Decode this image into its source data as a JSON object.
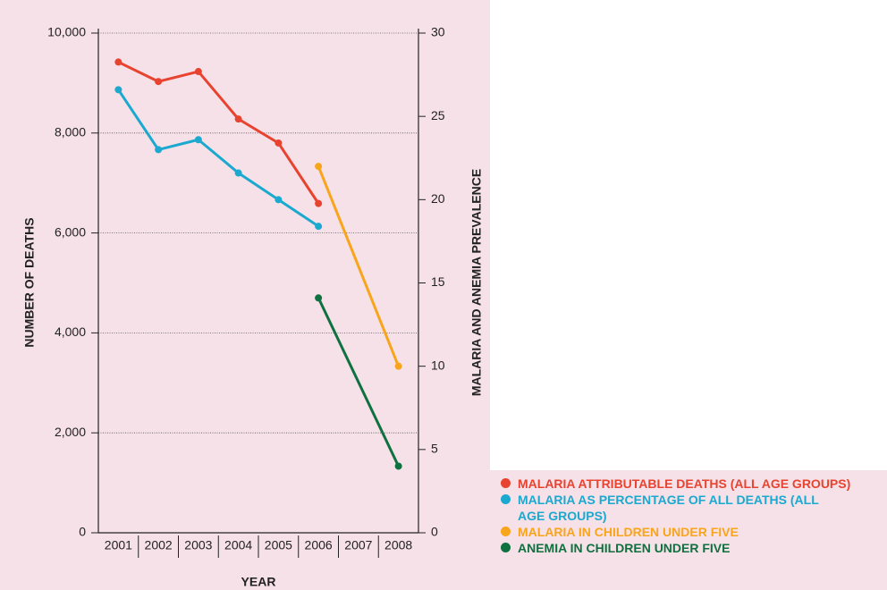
{
  "chart_data": {
    "type": "line",
    "categories": [
      "2001",
      "2002",
      "2003",
      "2004",
      "2005",
      "2006",
      "2007",
      "2008"
    ],
    "xlabel": "YEAR",
    "ylabel": "NUMBER OF DEATHS",
    "y2label": "MALARIA AND ANEMIA PREVALENCE",
    "ylim": [
      0,
      10000
    ],
    "yticks": [
      0,
      {
        "value": 2000,
        "label": "2,000"
      },
      {
        "value": 4000,
        "label": "4,000"
      },
      {
        "value": 6000,
        "label": "6,000"
      },
      {
        "value": 8000,
        "label": "8,000"
      },
      {
        "value": 10000,
        "label": "10,000"
      }
    ],
    "y2lim": [
      0,
      30
    ],
    "y2ticks": [
      0,
      5,
      10,
      15,
      20,
      25,
      30
    ],
    "grid": true,
    "series": [
      {
        "name": "MALARIA ATTRIBUTABLE DEATHS (ALL AGE GROUPS)",
        "color": "#e8432f",
        "values": [
          9420,
          9030,
          9230,
          8280,
          7800,
          6590,
          null,
          null
        ]
      },
      {
        "name": "MALARIA AS PERCENTAGE OF ALL DEATHS (ALL AGE GROUPS)",
        "color": "#1ba9cf",
        "axis": "y2",
        "values": [
          26.6,
          23.0,
          23.6,
          21.6,
          20.0,
          18.4,
          null,
          null
        ]
      },
      {
        "name": "MALARIA IN CHILDREN UNDER FIVE",
        "color": "#f9a51c",
        "axis": "y2",
        "values": [
          null,
          null,
          null,
          null,
          null,
          22.0,
          null,
          10.0
        ]
      },
      {
        "name": "ANEMIA IN CHILDREN UNDER FIVE",
        "color": "#0f7040",
        "axis": "y2",
        "values": [
          null,
          null,
          null,
          null,
          null,
          14.1,
          null,
          4.0
        ]
      }
    ]
  }
}
